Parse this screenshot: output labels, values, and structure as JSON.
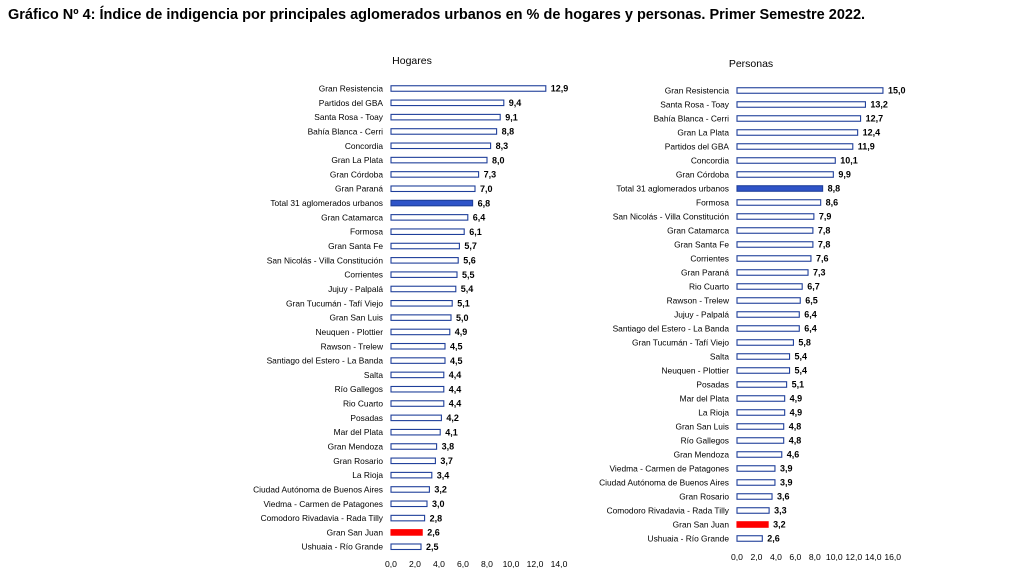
{
  "title": "Gráfico Nº 4: Índice de indigencia por principales aglomerados urbanos en % de hogares y personas. Primer Semestre 2022.",
  "colors": {
    "bar_fill": "#ffffff",
    "bar_border": "#1f3f9a",
    "highlight_total": "#2f54c8",
    "highlight_sanjuan": "#ff0000"
  },
  "chart_data": [
    {
      "type": "bar",
      "orientation": "horizontal",
      "title": "Hogares",
      "xlim": [
        0,
        14
      ],
      "xticks": [
        "0,0",
        "2,0",
        "4,0",
        "6,0",
        "8,0",
        "10,0",
        "12,0",
        "14,0"
      ],
      "categories": [
        "Gran Resistencia",
        "Partidos del GBA",
        "Santa Rosa - Toay",
        "Bahía Blanca - Cerri",
        "Concordia",
        "Gran La Plata",
        "Gran Córdoba",
        "Gran Paraná",
        "Total 31 aglomerados urbanos",
        "Gran Catamarca",
        "Formosa",
        "Gran Santa Fe",
        "San Nicolás - Villa Constitución",
        "Corrientes",
        "Jujuy - Palpalá",
        "Gran Tucumán - Tafí Viejo",
        "Gran San Luis",
        "Neuquen - Plottier",
        "Rawson - Trelew",
        "Santiago del Estero - La Banda",
        "Salta",
        "Río Gallegos",
        "Rio Cuarto",
        "Posadas",
        "Mar del Plata",
        "Gran Mendoza",
        "Gran Rosario",
        "La Rioja",
        "Ciudad Autónoma de Buenos Aires",
        "Viedma - Carmen de Patagones",
        "Comodoro Rivadavia - Rada Tilly",
        "Gran San Juan",
        "Ushuaia - Río Grande"
      ],
      "values": [
        12.9,
        9.4,
        9.1,
        8.8,
        8.3,
        8.0,
        7.3,
        7.0,
        6.8,
        6.4,
        6.1,
        5.7,
        5.6,
        5.5,
        5.4,
        5.1,
        5.0,
        4.9,
        4.5,
        4.5,
        4.4,
        4.4,
        4.4,
        4.2,
        4.1,
        3.8,
        3.7,
        3.4,
        3.2,
        3.0,
        2.8,
        2.6,
        2.5
      ],
      "value_labels": [
        "12,9",
        "9,4",
        "9,1",
        "8,8",
        "8,3",
        "8,0",
        "7,3",
        "7,0",
        "6,8",
        "6,4",
        "6,1",
        "5,7",
        "5,6",
        "5,5",
        "5,4",
        "5,1",
        "5,0",
        "4,9",
        "4,5",
        "4,5",
        "4,4",
        "4,4",
        "4,4",
        "4,2",
        "4,1",
        "3,8",
        "3,7",
        "3,4",
        "3,2",
        "3,0",
        "2,8",
        "2,6",
        "2,5"
      ],
      "highlight": {
        "Total 31 aglomerados urbanos": "#2f54c8",
        "Gran San Juan": "#ff0000"
      }
    },
    {
      "type": "bar",
      "orientation": "horizontal",
      "title": "Personas",
      "xlim": [
        0,
        16
      ],
      "xticks": [
        "0,0",
        "2,0",
        "4,0",
        "6,0",
        "8,0",
        "10,0",
        "12,0",
        "14,0",
        "16,0"
      ],
      "categories": [
        "Gran Resistencia",
        "Santa Rosa - Toay",
        "Bahía Blanca - Cerri",
        "Gran La Plata",
        "Partidos del GBA",
        "Concordia",
        "Gran Córdoba",
        "Total 31 aglomerados urbanos",
        "Formosa",
        "San Nicolás - Villa Constitución",
        "Gran Catamarca",
        "Gran Santa Fe",
        "Corrientes",
        "Gran Paraná",
        "Rio Cuarto",
        "Rawson - Trelew",
        "Jujuy - Palpalá",
        "Santiago del Estero - La Banda",
        "Gran Tucumán - Tafí Viejo",
        "Salta",
        "Neuquen - Plottier",
        "Posadas",
        "Mar del Plata",
        "La Rioja",
        "Gran San Luis",
        "Río Gallegos",
        "Gran Mendoza",
        "Viedma - Carmen de Patagones",
        "Ciudad Autónoma de Buenos Aires",
        "Gran Rosario",
        "Comodoro Rivadavia - Rada Tilly",
        "Gran San Juan",
        "Ushuaia - Río Grande"
      ],
      "values": [
        15.0,
        13.2,
        12.7,
        12.4,
        11.9,
        10.1,
        9.9,
        8.8,
        8.6,
        7.9,
        7.8,
        7.8,
        7.6,
        7.3,
        6.7,
        6.5,
        6.4,
        6.4,
        5.8,
        5.4,
        5.4,
        5.1,
        4.9,
        4.9,
        4.8,
        4.8,
        4.6,
        3.9,
        3.9,
        3.6,
        3.3,
        3.2,
        2.6
      ],
      "value_labels": [
        "15,0",
        "13,2",
        "12,7",
        "12,4",
        "11,9",
        "10,1",
        "9,9",
        "8,8",
        "8,6",
        "7,9",
        "7,8",
        "7,8",
        "7,6",
        "7,3",
        "6,7",
        "6,5",
        "6,4",
        "6,4",
        "5,8",
        "5,4",
        "5,4",
        "5,1",
        "4,9",
        "4,9",
        "4,8",
        "4,8",
        "4,6",
        "3,9",
        "3,9",
        "3,6",
        "3,3",
        "3,2",
        "2,6"
      ],
      "highlight": {
        "Total 31 aglomerados urbanos": "#2f54c8",
        "Gran San Juan": "#ff0000"
      }
    }
  ]
}
